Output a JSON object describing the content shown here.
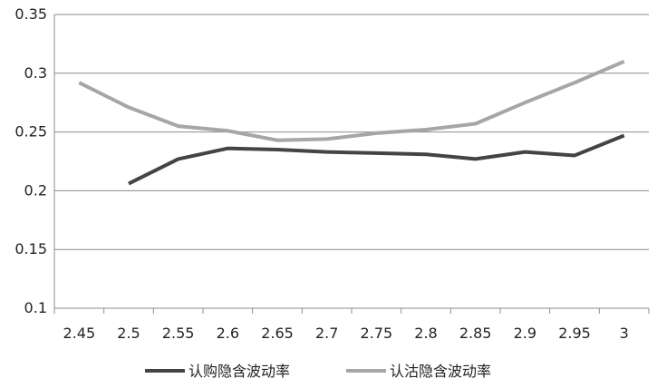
{
  "chart_data": {
    "type": "line",
    "categories": [
      "2.45",
      "2.5",
      "2.55",
      "2.6",
      "2.65",
      "2.7",
      "2.75",
      "2.8",
      "2.85",
      "2.9",
      "2.95",
      "3"
    ],
    "ylim": [
      0.1,
      0.35
    ],
    "y_ticks": [
      "0.1",
      "0.15",
      "0.2",
      "0.25",
      "0.3",
      "0.35"
    ],
    "grid": "horizontal",
    "legend_position": "bottom",
    "series": [
      {
        "name": "认购隐含波动率",
        "color": "#444444",
        "values": [
          null,
          0.206,
          0.227,
          0.236,
          0.235,
          0.233,
          0.232,
          0.231,
          0.227,
          0.233,
          0.23,
          0.247
        ]
      },
      {
        "name": "认沽隐含波动率",
        "color": "#a6a6a6",
        "values": [
          0.292,
          0.271,
          0.255,
          0.251,
          0.243,
          0.244,
          0.249,
          0.252,
          0.257,
          0.275,
          0.292,
          0.31
        ]
      }
    ]
  }
}
